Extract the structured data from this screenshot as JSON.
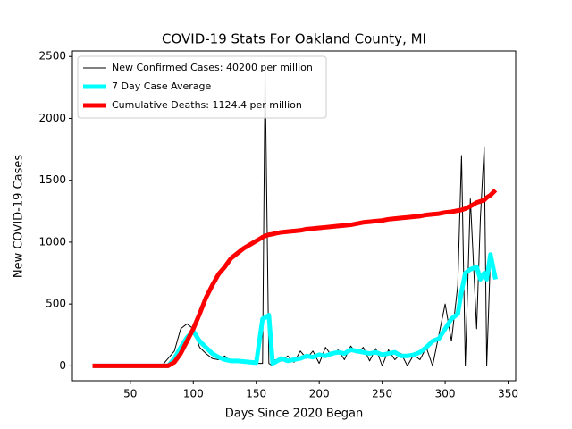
{
  "chart_data": {
    "type": "line",
    "title": "COVID-19 Stats For Oakland County, MI",
    "x_label": "Days Since 2020 Began",
    "y_label": "New COVID-19 Cases",
    "x": [
      20,
      25,
      30,
      35,
      40,
      45,
      50,
      55,
      60,
      65,
      70,
      75,
      80,
      85,
      90,
      95,
      100,
      105,
      110,
      115,
      120,
      125,
      130,
      135,
      140,
      145,
      150,
      155,
      157,
      160,
      163,
      165,
      170,
      175,
      180,
      185,
      190,
      195,
      200,
      205,
      210,
      215,
      220,
      225,
      230,
      235,
      240,
      245,
      250,
      255,
      260,
      265,
      270,
      275,
      280,
      285,
      290,
      295,
      300,
      305,
      310,
      313,
      316,
      320,
      325,
      328,
      331,
      333,
      336,
      340
    ],
    "series": [
      {
        "name": "New Confirmed Cases: 40200 per million",
        "color": "#000000",
        "width": 1,
        "values": [
          0,
          0,
          0,
          0,
          0,
          0,
          0,
          0,
          0,
          0,
          0,
          0,
          60,
          120,
          300,
          340,
          300,
          150,
          100,
          60,
          50,
          80,
          30,
          40,
          30,
          20,
          20,
          20,
          2420,
          20,
          0,
          50,
          40,
          80,
          30,
          120,
          60,
          120,
          20,
          150,
          80,
          130,
          50,
          160,
          100,
          150,
          40,
          140,
          0,
          130,
          50,
          100,
          0,
          90,
          50,
          150,
          0,
          250,
          500,
          200,
          650,
          1700,
          0,
          1350,
          300,
          1200,
          1770,
          0,
          900,
          700
        ]
      },
      {
        "name": "7 Day Case Average",
        "color": "#00ffff",
        "width": 5,
        "values": [
          0,
          0,
          0,
          0,
          0,
          0,
          0,
          0,
          0,
          0,
          0,
          0,
          0,
          60,
          150,
          230,
          280,
          200,
          150,
          100,
          70,
          50,
          40,
          40,
          35,
          30,
          25,
          380,
          390,
          410,
          20,
          30,
          60,
          40,
          50,
          60,
          80,
          70,
          90,
          80,
          100,
          110,
          100,
          130,
          120,
          110,
          100,
          110,
          90,
          100,
          110,
          80,
          80,
          90,
          110,
          150,
          200,
          220,
          300,
          380,
          420,
          600,
          750,
          780,
          800,
          700,
          750,
          700,
          900,
          700
        ]
      },
      {
        "name": "Cumulative Deaths: 1124.4 per million",
        "color": "#ff0000",
        "width": 5,
        "values": [
          0,
          0,
          0,
          0,
          0,
          0,
          0,
          0,
          0,
          0,
          0,
          0,
          0,
          30,
          100,
          200,
          300,
          420,
          550,
          650,
          740,
          800,
          870,
          910,
          950,
          980,
          1010,
          1040,
          1050,
          1060,
          1065,
          1070,
          1080,
          1085,
          1090,
          1095,
          1105,
          1110,
          1115,
          1120,
          1125,
          1130,
          1135,
          1140,
          1150,
          1160,
          1165,
          1170,
          1175,
          1185,
          1190,
          1195,
          1200,
          1205,
          1210,
          1220,
          1225,
          1230,
          1240,
          1245,
          1255,
          1260,
          1270,
          1290,
          1320,
          1330,
          1340,
          1360,
          1380,
          1420
        ]
      }
    ],
    "xlim": [
      4,
      356
    ],
    "ylim": [
      -120,
      2545
    ],
    "xticks": [
      50,
      100,
      150,
      200,
      250,
      300,
      350
    ],
    "yticks": [
      0,
      500,
      1000,
      1500,
      2000,
      2500
    ],
    "legend": "upper left"
  }
}
